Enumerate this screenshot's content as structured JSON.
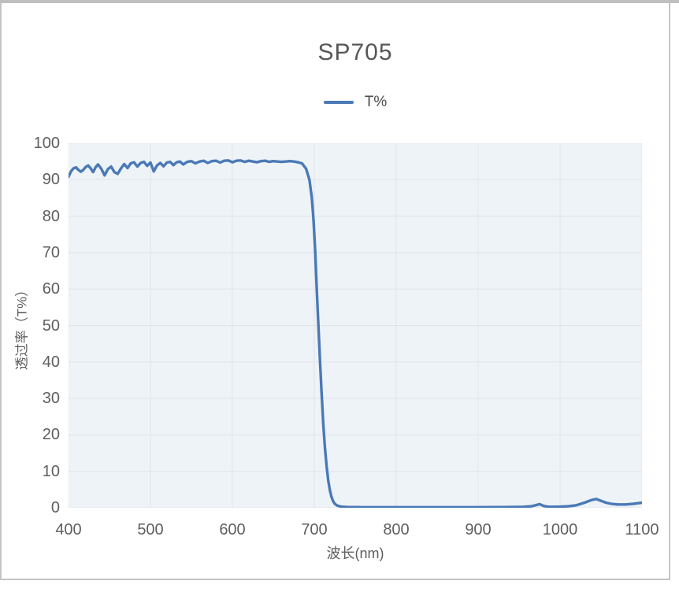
{
  "colors": {
    "line": "#4a79b5",
    "plot_bg": "#eef3f8",
    "gridline": "#e2e3e9",
    "tick_text": "#5e5e5e",
    "title_text": "#575757",
    "panel_border": "#c4c4c7",
    "top_bar": "#bfbfbf"
  },
  "chart_data": {
    "type": "line",
    "title": "SP705",
    "xlabel": "波长(nm)",
    "ylabel": "透过率（T%）",
    "xlim": [
      400,
      1100
    ],
    "ylim": [
      0,
      100
    ],
    "xticks": [
      400,
      500,
      600,
      700,
      800,
      900,
      1000,
      1100
    ],
    "yticks": [
      0,
      10,
      20,
      30,
      40,
      50,
      60,
      70,
      80,
      90,
      100
    ],
    "grid": true,
    "legend_position": "top",
    "series": [
      {
        "name": "T%",
        "color": "#4a79b5",
        "x": [
          400,
          403,
          406,
          409,
          412,
          415,
          418,
          421,
          424,
          427,
          430,
          433,
          436,
          440,
          444,
          448,
          452,
          456,
          460,
          464,
          468,
          472,
          476,
          480,
          484,
          488,
          492,
          496,
          500,
          504,
          508,
          512,
          516,
          520,
          524,
          528,
          532,
          536,
          540,
          545,
          550,
          555,
          560,
          565,
          570,
          575,
          580,
          585,
          590,
          595,
          600,
          605,
          610,
          615,
          620,
          625,
          630,
          635,
          640,
          645,
          650,
          655,
          660,
          665,
          670,
          675,
          680,
          685,
          690,
          694,
          697,
          699,
          701,
          703,
          705,
          707,
          709,
          711,
          713,
          715,
          717,
          719,
          721,
          723,
          725,
          728,
          732,
          736,
          740,
          750,
          760,
          780,
          800,
          820,
          840,
          860,
          880,
          900,
          920,
          940,
          955,
          965,
          970,
          975,
          980,
          985,
          990,
          1000,
          1010,
          1020,
          1030,
          1038,
          1044,
          1050,
          1056,
          1062,
          1070,
          1080,
          1090,
          1100
        ],
        "y": [
          90.8,
          92.3,
          93.1,
          93.4,
          92.7,
          92.2,
          92.7,
          93.5,
          93.9,
          93.1,
          92.1,
          93.4,
          94.2,
          93.0,
          91.2,
          92.9,
          93.6,
          92.1,
          91.6,
          93.1,
          94.3,
          93.2,
          94.5,
          94.8,
          93.6,
          94.6,
          94.9,
          93.8,
          94.7,
          92.3,
          93.9,
          94.6,
          93.7,
          94.7,
          94.9,
          94.0,
          94.8,
          95.0,
          94.2,
          94.9,
          95.1,
          94.5,
          95.0,
          95.2,
          94.6,
          95.1,
          95.2,
          94.7,
          95.2,
          95.3,
          94.8,
          95.2,
          95.3,
          94.9,
          95.2,
          95.0,
          94.8,
          95.1,
          95.2,
          94.9,
          95.1,
          95.0,
          94.9,
          95.0,
          95.1,
          95.0,
          94.8,
          94.5,
          93.0,
          90.0,
          85.0,
          79.0,
          71.0,
          60.0,
          50.0,
          40.0,
          31.0,
          23.0,
          16.5,
          11.5,
          7.5,
          4.8,
          3.0,
          1.8,
          1.1,
          0.6,
          0.35,
          0.25,
          0.2,
          0.18,
          0.15,
          0.15,
          0.15,
          0.15,
          0.15,
          0.15,
          0.15,
          0.15,
          0.18,
          0.2,
          0.25,
          0.4,
          0.7,
          1.0,
          0.5,
          0.3,
          0.25,
          0.3,
          0.4,
          0.7,
          1.4,
          2.1,
          2.4,
          1.9,
          1.4,
          1.1,
          0.9,
          0.9,
          1.1,
          1.4
        ]
      }
    ]
  }
}
